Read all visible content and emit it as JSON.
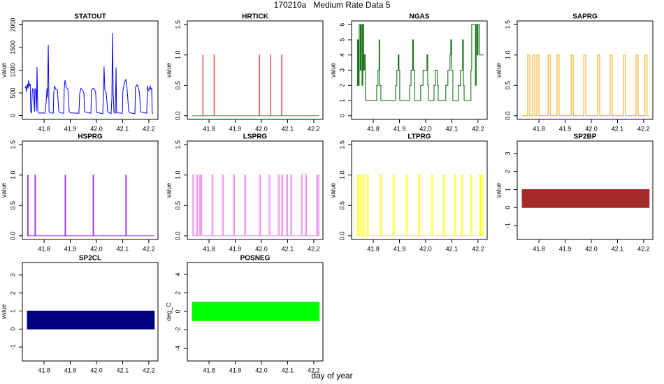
{
  "figure": {
    "title": "170210a   Medium Rate Data 5",
    "xlabel": "day of year"
  },
  "chart_data": [
    {
      "type": "line",
      "title": "STATOUT",
      "ylabel": "value",
      "color": "#0000ff",
      "step": false,
      "xlim": [
        41.717,
        42.235
      ],
      "xticks": [
        41.8,
        41.9,
        {
          "value": 42,
          "label": "42.0"
        },
        42.1,
        42.2
      ],
      "ylim": [
        -85,
        2085
      ],
      "yticks": [
        0,
        500,
        1000,
        1500,
        2000
      ],
      "x": [
        41.728,
        41.731,
        41.733,
        41.736,
        41.739,
        41.741,
        41.744,
        41.747,
        41.749,
        41.752,
        41.755,
        41.757,
        41.76,
        41.763,
        41.765,
        41.768,
        41.771,
        41.773,
        41.776,
        41.779,
        41.784,
        41.792,
        41.803,
        41.808,
        41.811,
        41.813,
        41.816,
        41.819,
        41.824,
        41.835,
        41.837,
        41.84,
        41.845,
        41.851,
        41.856,
        41.861,
        41.875,
        41.877,
        41.88,
        41.885,
        41.891,
        41.896,
        41.901,
        41.933,
        41.936,
        41.941,
        41.947,
        41.952,
        41.955,
        41.979,
        41.981,
        41.987,
        41.992,
        41.997,
        42.0,
        42.024,
        42.027,
        42.029,
        42.032,
        42.037,
        42.043,
        42.056,
        42.059,
        42.061,
        42.064,
        42.067,
        42.072,
        42.075,
        42.077,
        42.099,
        42.101,
        42.107,
        42.112,
        42.117,
        42.123,
        42.128,
        42.147,
        42.149,
        42.155,
        42.16,
        42.165,
        42.168,
        42.192,
        42.195,
        42.197,
        42.2,
        42.205,
        42.208,
        42.211,
        42.213,
        42.216
      ],
      "values": [
        600,
        650,
        520,
        700,
        600,
        780,
        650,
        700,
        100,
        50,
        550,
        600,
        500,
        80,
        600,
        550,
        100,
        1070,
        100,
        60,
        50,
        60,
        50,
        300,
        600,
        400,
        1560,
        80,
        60,
        50,
        500,
        650,
        580,
        560,
        100,
        60,
        50,
        600,
        780,
        620,
        580,
        90,
        60,
        50,
        480,
        600,
        560,
        500,
        80,
        50,
        550,
        600,
        580,
        520,
        70,
        40,
        500,
        1080,
        560,
        520,
        80,
        40,
        400,
        1820,
        500,
        80,
        50,
        1060,
        60,
        50,
        550,
        720,
        800,
        600,
        100,
        60,
        40,
        620,
        680,
        620,
        480,
        80,
        50,
        650,
        600,
        550,
        650,
        580,
        600,
        60,
        40
      ]
    },
    {
      "type": "line",
      "title": "HRTICK",
      "ylabel": "value",
      "color": "#e8423c",
      "step": true,
      "xlim": [
        41.717,
        42.235
      ],
      "xticks": [
        41.8,
        41.9,
        {
          "value": 42,
          "label": "42.0"
        },
        42.1,
        42.2
      ],
      "ylim": [
        -0.06,
        1.56
      ],
      "yticks": [
        {
          "value": 0,
          "label": "0.0"
        },
        0.5,
        {
          "value": 1,
          "label": "1.0"
        },
        1.5
      ],
      "x": [
        41.736,
        41.776,
        41.777,
        41.819,
        41.82,
        41.992,
        41.993,
        42.035,
        42.036,
        42.077,
        42.078,
        42.221
      ],
      "values": [
        0,
        1,
        0,
        1,
        0,
        1,
        0,
        1,
        0,
        1,
        0,
        0
      ]
    },
    {
      "type": "line",
      "title": "NGAS",
      "ylabel": "value",
      "color": "#006400",
      "step": true,
      "xlim": [
        41.717,
        42.235
      ],
      "xticks": [
        41.8,
        41.9,
        {
          "value": 42,
          "label": "42.0"
        },
        42.1,
        42.2
      ],
      "ylim": [
        -0.24,
        6.24
      ],
      "yticks": [
        0,
        1,
        2,
        3,
        4,
        5,
        6
      ],
      "x": [
        41.736,
        41.74,
        41.743,
        41.746,
        41.75,
        41.753,
        41.757,
        41.76,
        41.763,
        41.766,
        41.77,
        41.813,
        41.818,
        41.822,
        41.824,
        41.829,
        41.885,
        41.89,
        41.895,
        41.898,
        41.901,
        41.939,
        41.944,
        41.95,
        41.953,
        41.958,
        41.981,
        41.99,
        42.005,
        42.008,
        42.011,
        42.032,
        42.037,
        42.045,
        42.048,
        42.077,
        42.085,
        42.093,
        42.096,
        42.099,
        42.104,
        42.125,
        42.133,
        42.141,
        42.144,
        42.147,
        42.173,
        42.176,
        42.19,
        42.193,
        42.197,
        42.2,
        42.206,
        42.221
      ],
      "values": [
        2,
        5,
        2,
        6,
        3,
        6,
        2,
        6,
        3,
        4,
        1,
        2,
        3,
        5,
        2,
        1,
        2,
        3,
        4,
        3,
        1,
        2,
        3,
        5,
        3,
        1,
        2,
        3,
        4,
        2,
        1,
        2,
        3,
        2,
        1,
        2,
        3,
        4,
        5,
        3,
        1,
        2,
        3,
        5,
        2,
        1,
        3,
        6,
        2,
        6,
        4,
        6,
        4,
        4
      ]
    },
    {
      "type": "line",
      "title": "SAPRG",
      "ylabel": "value",
      "color": "#ffa500",
      "step": true,
      "xlim": [
        41.717,
        42.235
      ],
      "xticks": [
        41.8,
        41.9,
        {
          "value": 42,
          "label": "42.0"
        },
        42.1,
        42.2
      ],
      "ylim": [
        -0.06,
        1.56
      ],
      "yticks": [
        {
          "value": 0,
          "label": "0.0"
        },
        0.5,
        {
          "value": 1,
          "label": "1.0"
        },
        1.5
      ],
      "x": [
        41.736,
        41.757,
        41.765,
        41.776,
        41.784,
        41.792,
        41.8,
        41.835,
        41.843,
        41.869,
        41.877,
        41.923,
        41.931,
        41.971,
        41.979,
        42.024,
        42.032,
        42.072,
        42.08,
        42.123,
        42.131,
        42.171,
        42.179,
        42.205,
        42.213,
        42.221
      ],
      "values": [
        0,
        1,
        0,
        1,
        0,
        1,
        0,
        1,
        0,
        1,
        0,
        1,
        0,
        1,
        0,
        1,
        0,
        1,
        0,
        1,
        0,
        1,
        0,
        1,
        0,
        0
      ]
    },
    {
      "type": "line",
      "title": "HSPRG",
      "ylabel": "value",
      "color": "#a020f0",
      "step": true,
      "xlim": [
        41.717,
        42.235
      ],
      "xticks": [
        41.8,
        41.9,
        {
          "value": 42,
          "label": "42.0"
        },
        42.1,
        42.2
      ],
      "ylim": [
        -0.06,
        1.56
      ],
      "yticks": [
        {
          "value": 0,
          "label": "0.0"
        },
        0.5,
        {
          "value": 1,
          "label": "1.0"
        },
        1.5
      ],
      "x": [
        41.736,
        41.737,
        41.739,
        41.765,
        41.767,
        41.88,
        41.882,
        41.987,
        41.989,
        42.112,
        42.114,
        42.221
      ],
      "values": [
        0,
        1,
        0,
        1,
        0,
        1,
        0,
        1,
        0,
        1,
        0,
        0
      ]
    },
    {
      "type": "line",
      "title": "LSPRG",
      "ylabel": "value",
      "color": "#ee82ee",
      "step": true,
      "xlim": [
        41.717,
        42.235
      ],
      "xticks": [
        41.8,
        41.9,
        {
          "value": 42,
          "label": "42.0"
        },
        42.1,
        42.2
      ],
      "ylim": [
        -0.06,
        1.56
      ],
      "yticks": [
        {
          "value": 0,
          "label": "0.0"
        },
        0.5,
        {
          "value": 1,
          "label": "1.0"
        },
        1.5
      ],
      "x": [
        41.736,
        41.738,
        41.742,
        41.752,
        41.756,
        41.763,
        41.767,
        41.768,
        41.772,
        41.811,
        41.815,
        41.851,
        41.855,
        41.893,
        41.897,
        41.936,
        41.94,
        41.992,
        41.996,
        42.029,
        42.033,
        42.064,
        42.068,
        42.077,
        42.081,
        42.096,
        42.1,
        42.112,
        42.116,
        42.152,
        42.156,
        42.168,
        42.172,
        42.211,
        42.215,
        42.216,
        42.22,
        42.221
      ],
      "values": [
        0,
        1,
        0,
        1,
        0,
        1,
        0,
        1,
        0,
        1,
        0,
        1,
        0,
        1,
        0,
        1,
        0,
        1,
        0,
        1,
        0,
        1,
        0,
        1,
        0,
        1,
        0,
        1,
        0,
        1,
        0,
        1,
        0,
        1,
        0,
        1,
        0,
        0
      ]
    },
    {
      "type": "line",
      "title": "LTPRG",
      "ylabel": "value",
      "color": "#ffff00",
      "step": true,
      "xlim": [
        41.717,
        42.235
      ],
      "xticks": [
        41.8,
        41.9,
        {
          "value": 42,
          "label": "42.0"
        },
        42.1,
        42.2
      ],
      "ylim": [
        -0.06,
        1.56
      ],
      "yticks": [
        {
          "value": 0,
          "label": "0.0"
        },
        0.5,
        {
          "value": 1,
          "label": "1.0"
        },
        1.5
      ],
      "x": [
        41.736,
        41.739,
        41.744,
        41.749,
        41.754,
        41.76,
        41.765,
        41.776,
        41.781,
        41.827,
        41.832,
        41.875,
        41.88,
        41.925,
        41.93,
        41.973,
        41.978,
        42.021,
        42.026,
        42.067,
        42.072,
        42.109,
        42.114,
        42.136,
        42.141,
        42.171,
        42.176,
        42.205,
        42.21,
        42.214,
        42.219,
        42.221
      ],
      "values": [
        0,
        1,
        0,
        1,
        0,
        1,
        0,
        1,
        0,
        1,
        0,
        1,
        0,
        1,
        0,
        1,
        0,
        1,
        0,
        1,
        0,
        1,
        0,
        1,
        0,
        1,
        0,
        1,
        0,
        1,
        0,
        0
      ]
    },
    {
      "type": "band",
      "title": "SP2BP",
      "ylabel": "value",
      "color": "#a52a2a",
      "xlim": [
        41.717,
        42.235
      ],
      "xticks": [
        41.8,
        41.9,
        {
          "value": 42,
          "label": "42.0"
        },
        42.1,
        42.2
      ],
      "ylim": [
        -1.77,
        3.69
      ],
      "yticks": [
        -1,
        0,
        1,
        2,
        3
      ],
      "x": [
        41.736,
        42.221
      ],
      "low": [
        0,
        0
      ],
      "high": [
        1,
        1
      ]
    },
    {
      "type": "band",
      "title": "SP2CL",
      "ylabel": "value",
      "color": "#000080",
      "xlim": [
        41.717,
        42.235
      ],
      "xticks": [
        41.8,
        41.9,
        {
          "value": 42,
          "label": "42.0"
        },
        42.1,
        42.2
      ],
      "ylim": [
        -1.77,
        3.69
      ],
      "yticks": [
        -1,
        0,
        1,
        2,
        3
      ],
      "x": [
        41.736,
        42.221
      ],
      "low": [
        0,
        0
      ],
      "high": [
        1,
        1
      ]
    },
    {
      "type": "band",
      "title": "POSNEG",
      "ylabel": "deg_C",
      "color": "#00ff00",
      "xlim": [
        41.717,
        42.235
      ],
      "xticks": [
        41.8,
        41.9,
        {
          "value": 42,
          "label": "42.0"
        },
        42.1,
        42.2
      ],
      "ylim": [
        -5.36,
        5.28
      ],
      "yticks": [
        -4,
        -2,
        0,
        2,
        4
      ],
      "x": [
        41.736,
        42.221
      ],
      "low": [
        -1,
        -1
      ],
      "high": [
        1,
        1
      ]
    }
  ]
}
